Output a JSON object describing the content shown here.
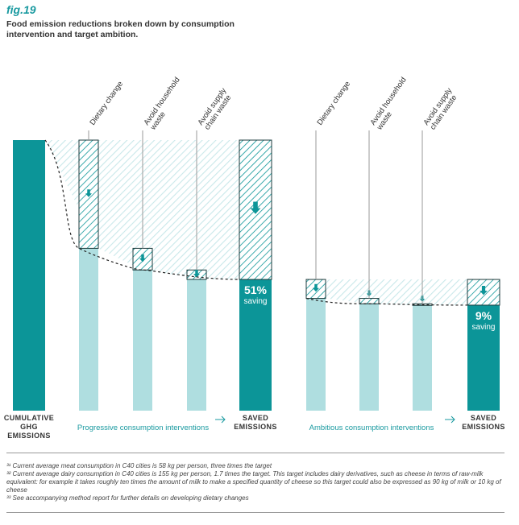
{
  "fig_label": "fig.19",
  "title": "Food emission reductions broken down by consumption intervention and target ambition.",
  "colors": {
    "dark_teal": "#0c9598",
    "light_teal": "#afdee0",
    "hatch": "#0c9598",
    "accent_text": "#1a9aa0"
  },
  "chart_data": {
    "type": "waterfall",
    "unit_note": "heights read as share of cumulative GHG emissions (cumulative = 100)",
    "ylim": [
      0,
      100
    ],
    "bars": [
      {
        "id": "cumulative",
        "kind": "total",
        "value": 100,
        "top_label": "",
        "bottom_label": "CUMULATIVE\nGHG\nEMISSIONS"
      },
      {
        "id": "prog-diet",
        "kind": "reduction",
        "from": 100,
        "to": 60,
        "top_label": "Dietary change",
        "arrow": "small"
      },
      {
        "id": "prog-waste",
        "kind": "reduction",
        "from": 60,
        "to": 52,
        "top_label": "Avoid household\nwaste",
        "arrow": "small"
      },
      {
        "id": "prog-supply",
        "kind": "reduction",
        "from": 52,
        "to": 48.5,
        "top_label": "Avoid supply\nchain waste",
        "arrow": "small"
      },
      {
        "id": "saved-1",
        "kind": "saved",
        "from": 100,
        "to": 48.5,
        "saving_pct": "51%",
        "saving_word": "saving",
        "bottom_label": "SAVED\nEMISSIONS",
        "arrow": "large"
      },
      {
        "id": "amb-diet",
        "kind": "reduction",
        "from": 48.5,
        "to": 41.5,
        "top_label": "Dietary change",
        "arrow": "small"
      },
      {
        "id": "amb-waste",
        "kind": "reduction",
        "from": 41.5,
        "to": 39.5,
        "top_label": "Avoid household\nwaste",
        "arrow": "small"
      },
      {
        "id": "amb-supply",
        "kind": "reduction",
        "from": 39.5,
        "to": 39.0,
        "top_label": "Avoid supply\nchain waste",
        "arrow": "small"
      },
      {
        "id": "saved-2",
        "kind": "saved",
        "from": 48.5,
        "to": 39.0,
        "saving_pct": "9%",
        "saving_word": "saving",
        "bottom_label": "SAVED\nEMISSIONS",
        "arrow": "large"
      }
    ],
    "groups": [
      {
        "label": "Progressive consumption interventions",
        "from_bar": 1,
        "to_bar": 3
      },
      {
        "label": "Ambitious consumption interventions",
        "from_bar": 5,
        "to_bar": 7
      }
    ]
  },
  "footnotes": [
    "³¹ Current average meat consumption in C40 cities is 58 kg per person, three times the target",
    "³² Current average dairy consumption in C40 cities is 155 kg per person, 1.7 times the target. This target includes dairy derivatives, such as cheese in terms of raw-milk equivalent: for example it takes roughly ten times the amount of milk to make a specified quantity of cheese so this target could also be expressed as 90 kg of milk or 10 kg of cheese",
    "³³ See accompanying method report for further details on developing dietary changes"
  ]
}
